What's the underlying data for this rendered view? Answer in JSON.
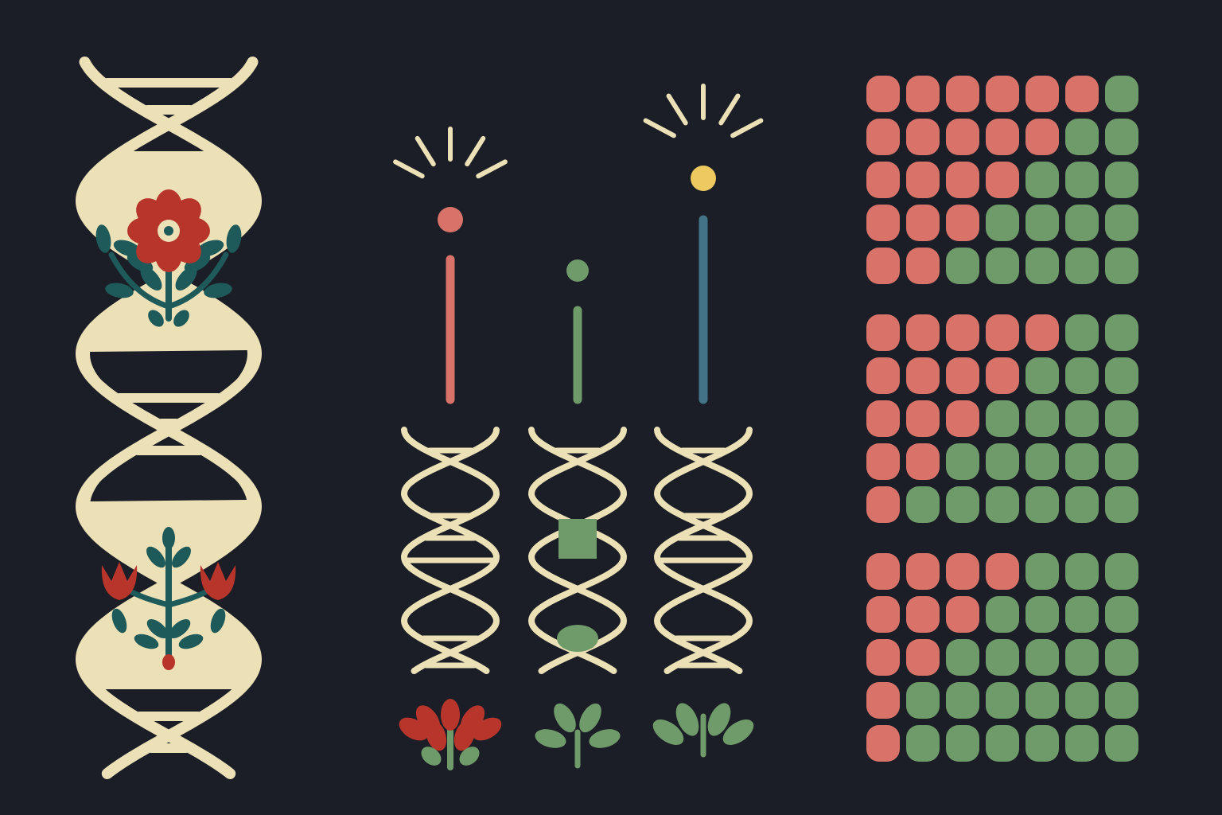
{
  "colors": {
    "background": "#1b1e26",
    "cream": "#ece0b6",
    "red": "#b8352c",
    "teal": "#1e5a5a",
    "coral": "#d97369",
    "sage": "#6f9a69",
    "slate": "#437387",
    "yellow": "#edc960"
  },
  "illustration": {
    "large_helix": {
      "motifs": [
        "flower-icon",
        "tulip-icon"
      ]
    },
    "small_helices": [
      {
        "name": "left",
        "marker_color": "coral",
        "bar_color": "coral",
        "has_rays": false,
        "bottom_plant": "red-flower-icon"
      },
      {
        "name": "middle",
        "marker_color": "sage",
        "bar_color": "sage",
        "has_rays": false,
        "inner_shapes": [
          "square",
          "oval"
        ],
        "bottom_plant": "green-sprout-icon"
      },
      {
        "name": "right",
        "marker_color": "yellow",
        "bar_color": "slate",
        "has_rays": true,
        "bottom_plant": "green-sprout-icon"
      }
    ],
    "dot_grids": [
      {
        "rows": [
          [
            "coral",
            "coral",
            "coral",
            "coral",
            "coral",
            "coral",
            "sage"
          ],
          [
            "coral",
            "coral",
            "coral",
            "coral",
            "coral",
            "sage",
            "sage"
          ],
          [
            "coral",
            "coral",
            "coral",
            "coral",
            "sage",
            "sage",
            "sage"
          ],
          [
            "coral",
            "coral",
            "coral",
            "sage",
            "sage",
            "sage",
            "sage"
          ],
          [
            "coral",
            "coral",
            "sage",
            "sage",
            "sage",
            "sage",
            "sage"
          ]
        ]
      },
      {
        "rows": [
          [
            "coral",
            "coral",
            "coral",
            "coral",
            "coral",
            "sage",
            "sage"
          ],
          [
            "coral",
            "coral",
            "coral",
            "coral",
            "sage",
            "sage",
            "sage"
          ],
          [
            "coral",
            "coral",
            "coral",
            "sage",
            "sage",
            "sage",
            "sage"
          ],
          [
            "coral",
            "coral",
            "sage",
            "sage",
            "sage",
            "sage",
            "sage"
          ],
          [
            "coral",
            "sage",
            "sage",
            "sage",
            "sage",
            "sage",
            "sage"
          ]
        ]
      },
      {
        "rows": [
          [
            "coral",
            "coral",
            "coral",
            "coral",
            "sage",
            "sage",
            "sage"
          ],
          [
            "coral",
            "coral",
            "coral",
            "sage",
            "sage",
            "sage",
            "sage"
          ],
          [
            "coral",
            "coral",
            "sage",
            "sage",
            "sage",
            "sage",
            "sage"
          ],
          [
            "coral",
            "sage",
            "sage",
            "sage",
            "sage",
            "sage",
            "sage"
          ],
          [
            "coral",
            "sage",
            "sage",
            "sage",
            "sage",
            "sage",
            "sage"
          ]
        ]
      }
    ]
  }
}
